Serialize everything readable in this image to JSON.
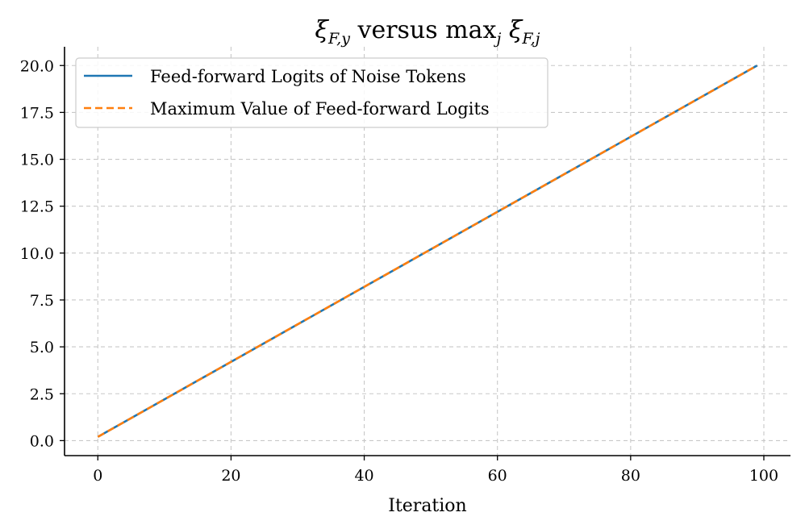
{
  "chart_data": {
    "type": "line",
    "title_parts": {
      "base1": "ξ",
      "sub1": "F,y",
      "middle": " versus max",
      "sub2": "j",
      "base2": " ξ",
      "sub3": "F,j"
    },
    "xlabel": "Iteration",
    "ylabel": "",
    "xlim": [
      -5,
      104
    ],
    "ylim": [
      -0.8,
      21.0
    ],
    "xticks": [
      0,
      20,
      40,
      60,
      80,
      100
    ],
    "yticks": [
      0.0,
      2.5,
      5.0,
      7.5,
      10.0,
      12.5,
      15.0,
      17.5,
      20.0
    ],
    "xtick_labels": [
      "0",
      "20",
      "40",
      "60",
      "80",
      "100"
    ],
    "ytick_labels": [
      "0.0",
      "2.5",
      "5.0",
      "7.5",
      "10.0",
      "12.5",
      "15.0",
      "17.5",
      "20.0"
    ],
    "grid": true,
    "legend_position": "top-left",
    "series": [
      {
        "name": "Feed-forward Logits of Noise Tokens",
        "color": "#1f77b4",
        "style": "solid",
        "x": [
          0,
          99
        ],
        "y": [
          0.2,
          20.0
        ]
      },
      {
        "name": "Maximum Value of Feed-forward Logits",
        "color": "#ff7f0e",
        "style": "dashed",
        "x": [
          0,
          99
        ],
        "y": [
          0.2,
          20.0
        ]
      }
    ]
  }
}
